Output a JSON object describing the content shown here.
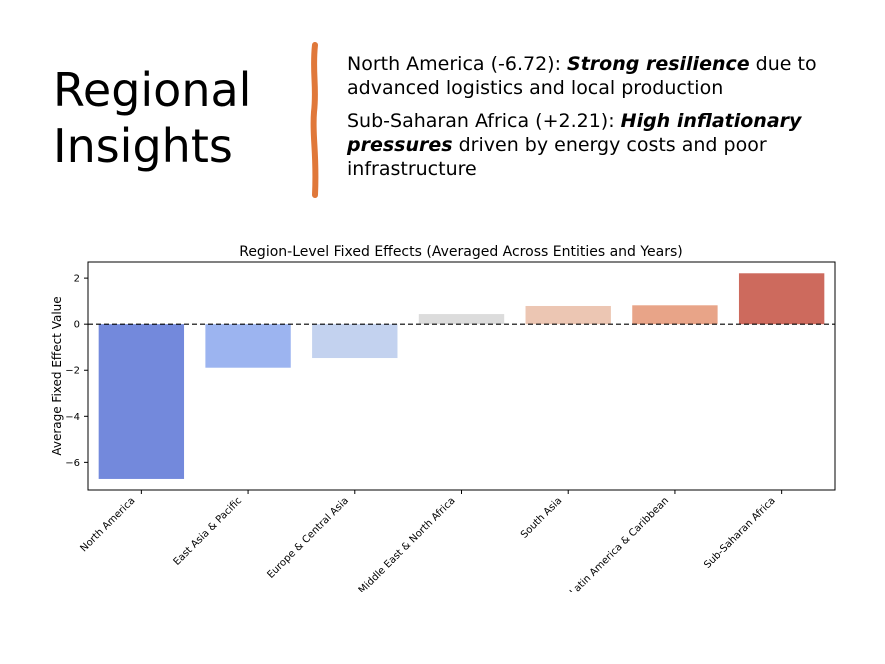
{
  "slide": {
    "title_line1": "Regional",
    "title_line2": "Insights",
    "accent_color": "#E0783A"
  },
  "insights": [
    {
      "prefix": "North America (-6.72): ",
      "emphasis": "Strong resilience",
      "suffix": " due to advanced logistics and local production"
    },
    {
      "prefix": "Sub-Saharan Africa (+2.21): ",
      "emphasis": "High inflationary pressures",
      "suffix": " driven by energy costs and poor infrastructure"
    }
  ],
  "chart_data": {
    "type": "bar",
    "title": "Region-Level Fixed Effects (Averaged Across Entities and Years)",
    "xlabel": "",
    "ylabel": "Average Fixed Effect Value",
    "categories": [
      "North America",
      "East Asia & Pacific",
      "Europe & Central Asia",
      "Middle East & North Africa",
      "South Asia",
      "Latin America & Caribbean",
      "Sub-Saharan Africa"
    ],
    "values": [
      -6.72,
      -1.89,
      -1.47,
      0.44,
      0.79,
      0.82,
      2.21
    ],
    "colors": [
      "#7389dc",
      "#9cb4f0",
      "#c3d2ef",
      "#dcdcdc",
      "#ecc6b3",
      "#e8a488",
      "#cd6a5d"
    ],
    "ylim": [
      -7.2,
      2.7
    ],
    "yticks": [
      2,
      0,
      -2,
      -4,
      -6
    ],
    "ytick_labels": [
      "2",
      "0",
      "−2",
      "−4",
      "−6"
    ],
    "reference_line": 0,
    "grid": false,
    "legend": "none"
  }
}
